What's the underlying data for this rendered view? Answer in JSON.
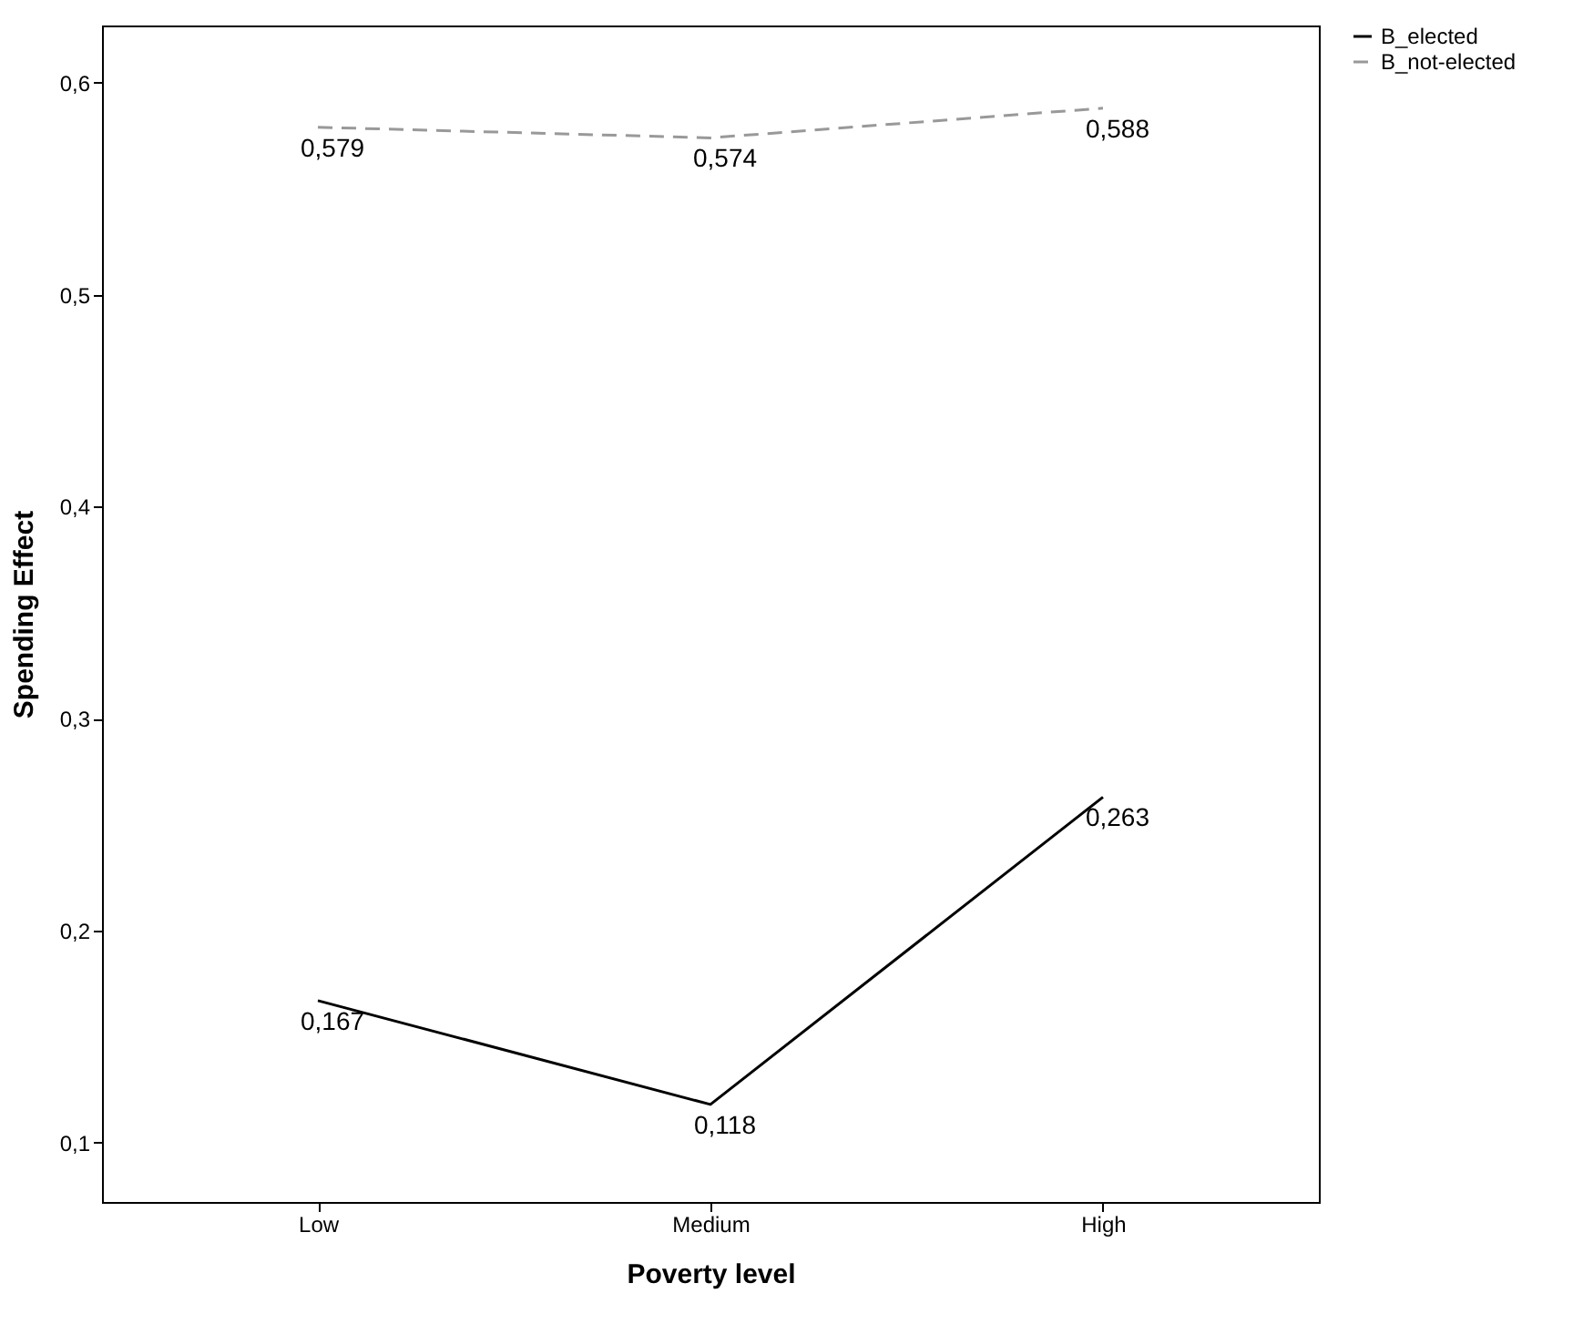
{
  "chart_data": {
    "type": "line",
    "xlabel": "Poverty level",
    "ylabel": "Spending Effect",
    "categories": [
      "Low",
      "Medium",
      "High"
    ],
    "series": [
      {
        "name": "B_elected",
        "color": "#000000",
        "line_style": "solid",
        "values": [
          0.167,
          0.118,
          0.263
        ],
        "value_labels": [
          "0,167",
          "0,118",
          "0,263"
        ]
      },
      {
        "name": "B_not-elected",
        "color": "#999999",
        "line_style": "dashed",
        "values": [
          0.579,
          0.574,
          0.588
        ],
        "value_labels": [
          "0,579",
          "0,574",
          "0,588"
        ]
      }
    ],
    "ylim": [
      0.072,
      0.627
    ],
    "yticks": [
      {
        "value": 0.1,
        "label": "0,1"
      },
      {
        "value": 0.2,
        "label": "0,2"
      },
      {
        "value": 0.3,
        "label": "0,3"
      },
      {
        "value": 0.4,
        "label": "0,4"
      },
      {
        "value": 0.5,
        "label": "0,5"
      },
      {
        "value": 0.6,
        "label": "0,6"
      }
    ],
    "grid": false,
    "legend": "top right",
    "marker": "none"
  }
}
